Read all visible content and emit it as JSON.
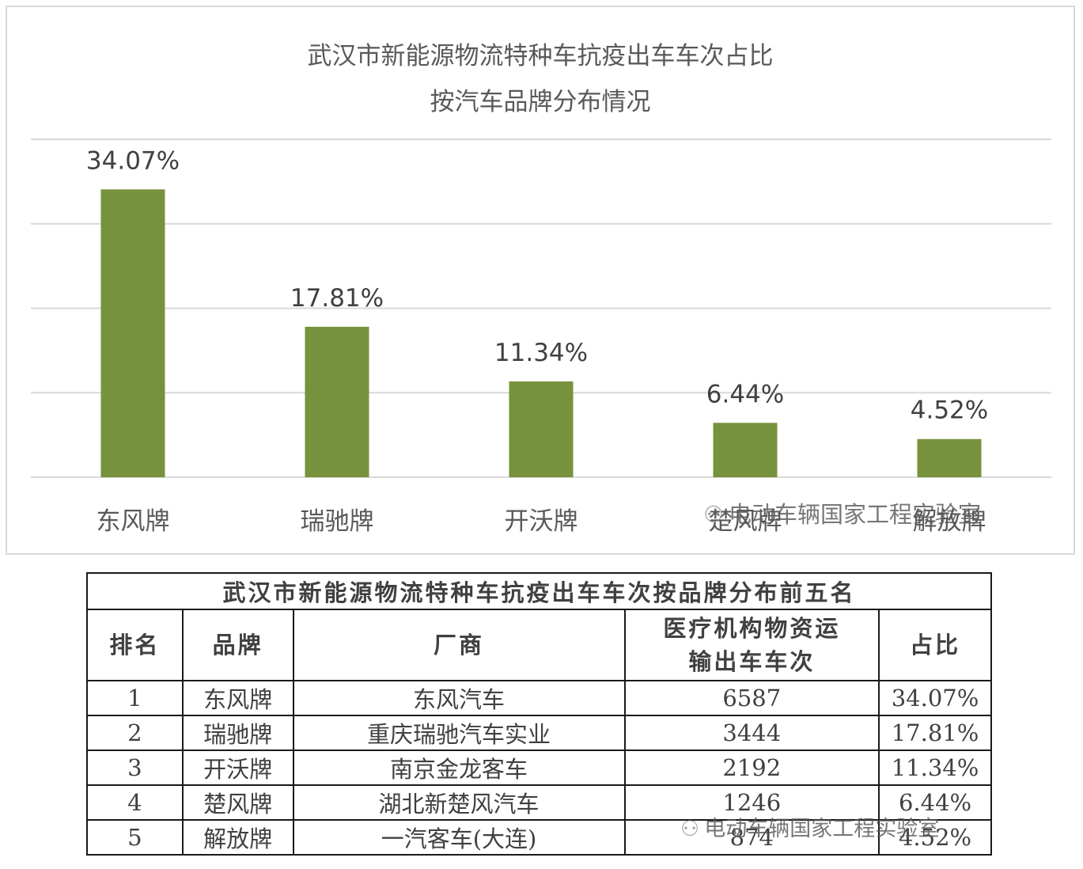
{
  "chart_data": {
    "type": "bar",
    "title": "武汉市新能源物流特种车抗疫出车车次占比",
    "subtitle": "按汽车品牌分布情况",
    "categories": [
      "东风牌",
      "瑞驰牌",
      "开沃牌",
      "楚风牌",
      "解放牌"
    ],
    "values": [
      34.07,
      17.81,
      11.34,
      6.44,
      4.52
    ],
    "value_labels": [
      "34.07%",
      "17.81%",
      "11.34%",
      "6.44%",
      "4.52%"
    ],
    "ylim": [
      0,
      40
    ],
    "grid": true,
    "bar_color": "#76923c"
  },
  "watermark": "电动车辆国家工程实验室",
  "table": {
    "title": "武汉市新能源物流特种车抗疫出车车次按品牌分布前五名",
    "headers": [
      "排名",
      "品牌",
      "厂商",
      "医疗机构物资运输出车车次",
      "占比"
    ],
    "rows": [
      [
        "1",
        "东风牌",
        "东风汽车",
        "6587",
        "34.07%"
      ],
      [
        "2",
        "瑞驰牌",
        "重庆瑞驰汽车实业",
        "3444",
        "17.81%"
      ],
      [
        "3",
        "开沃牌",
        "南京金龙客车",
        "2192",
        "11.34%"
      ],
      [
        "4",
        "楚风牌",
        "湖北新楚风汽车",
        "1246",
        "6.44%"
      ],
      [
        "5",
        "解放牌",
        "一汽客车(大连)",
        "874",
        "4.52%"
      ]
    ]
  }
}
